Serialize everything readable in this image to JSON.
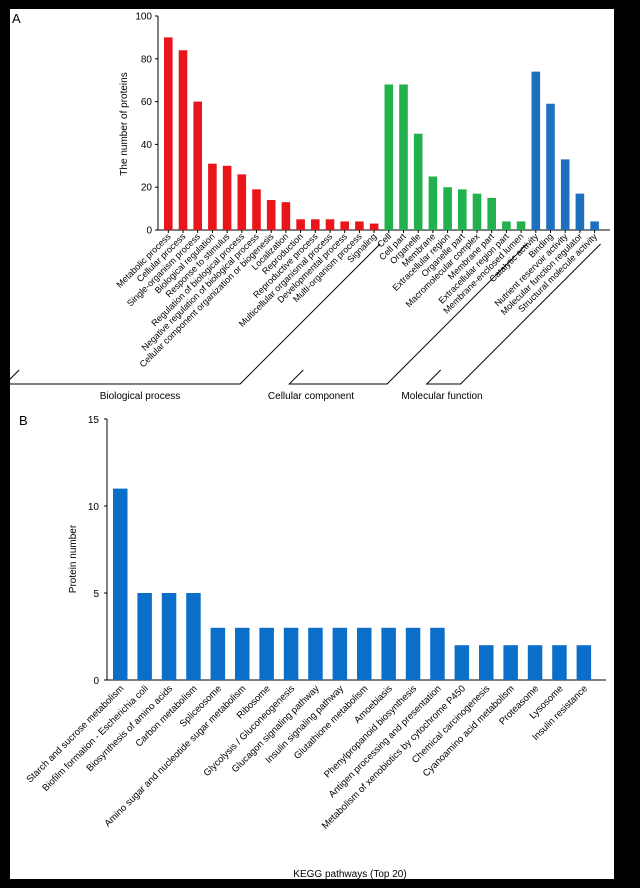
{
  "chart_data": [
    {
      "panel_label": "A",
      "type": "bar",
      "ylabel": "The number of proteins",
      "ylim": [
        0,
        100
      ],
      "yticks": [
        0,
        20,
        40,
        60,
        80,
        100
      ],
      "groups": [
        {
          "name": "Biological process",
          "color": "#e8161b",
          "categories": [
            "Metabolic process",
            "Cellular process",
            "Single-organism process",
            "Biological regulation",
            "Response to stimulus",
            "Regulation of biological process",
            "Negative regulation of biological process",
            "Cellular component organization or biogenesis",
            "Localization",
            "Reproduction",
            "Reproductive process",
            "Multicellular organismal process",
            "Developmental process",
            "Multi-organism process",
            "Signaling"
          ],
          "values": [
            90,
            84,
            60,
            31,
            30,
            26,
            19,
            14,
            13,
            5,
            5,
            5,
            4,
            4,
            3
          ]
        },
        {
          "name": "Cellular component",
          "color": "#22b14c",
          "categories": [
            "Cell",
            "Cell part",
            "Organelle",
            "Membrane",
            "Extracellular region",
            "Organelle part",
            "Macromolecular complex",
            "Membrane part",
            "Extracellular region part",
            "Membrane-enclosed lumen"
          ],
          "values": [
            68,
            68,
            45,
            25,
            20,
            19,
            17,
            15,
            4,
            4
          ]
        },
        {
          "name": "Molecular function",
          "color": "#1f6fbf",
          "categories": [
            "Catalytic activity",
            "Binding",
            "Nutrient reservoir activity",
            "Molecular function regulator",
            "Structural molecule activity"
          ],
          "values": [
            74,
            59,
            33,
            17,
            4
          ]
        }
      ]
    },
    {
      "panel_label": "B",
      "type": "bar",
      "xlabel": "KEGG pathways (Top 20)",
      "ylabel": "Protein number",
      "ylim": [
        0,
        15
      ],
      "yticks": [
        0,
        5,
        10,
        15
      ],
      "color": "#0b6fc9",
      "categories": [
        "Starch and sucrose metabolism",
        "Biofilm formation - Escherichia coli",
        "Biosynthesis of amino acids",
        "Carbon metabolism",
        "Spliceosome",
        "Amino sugar and nucleotide sugar metabolism",
        "Ribosome",
        "Glycolysis / Gluconeogenesis",
        "Glucagon signaling pathway",
        "Insulin signaling pathway",
        "Glutathione metabolism",
        "Amoebiasis",
        "Phenylpropanoid biosynthesis",
        "Antigen processing and presentation",
        "Metabolism of xenobiotics by cytochrome P450",
        "Chemical carcinogenesis",
        "Cyanoamino acid metabolism",
        "Proteasome",
        "Lysosome",
        "Insulin resistance"
      ],
      "values": [
        11,
        5,
        5,
        5,
        3,
        3,
        3,
        3,
        3,
        3,
        3,
        3,
        3,
        3,
        2,
        2,
        2,
        2,
        2,
        2
      ]
    }
  ]
}
